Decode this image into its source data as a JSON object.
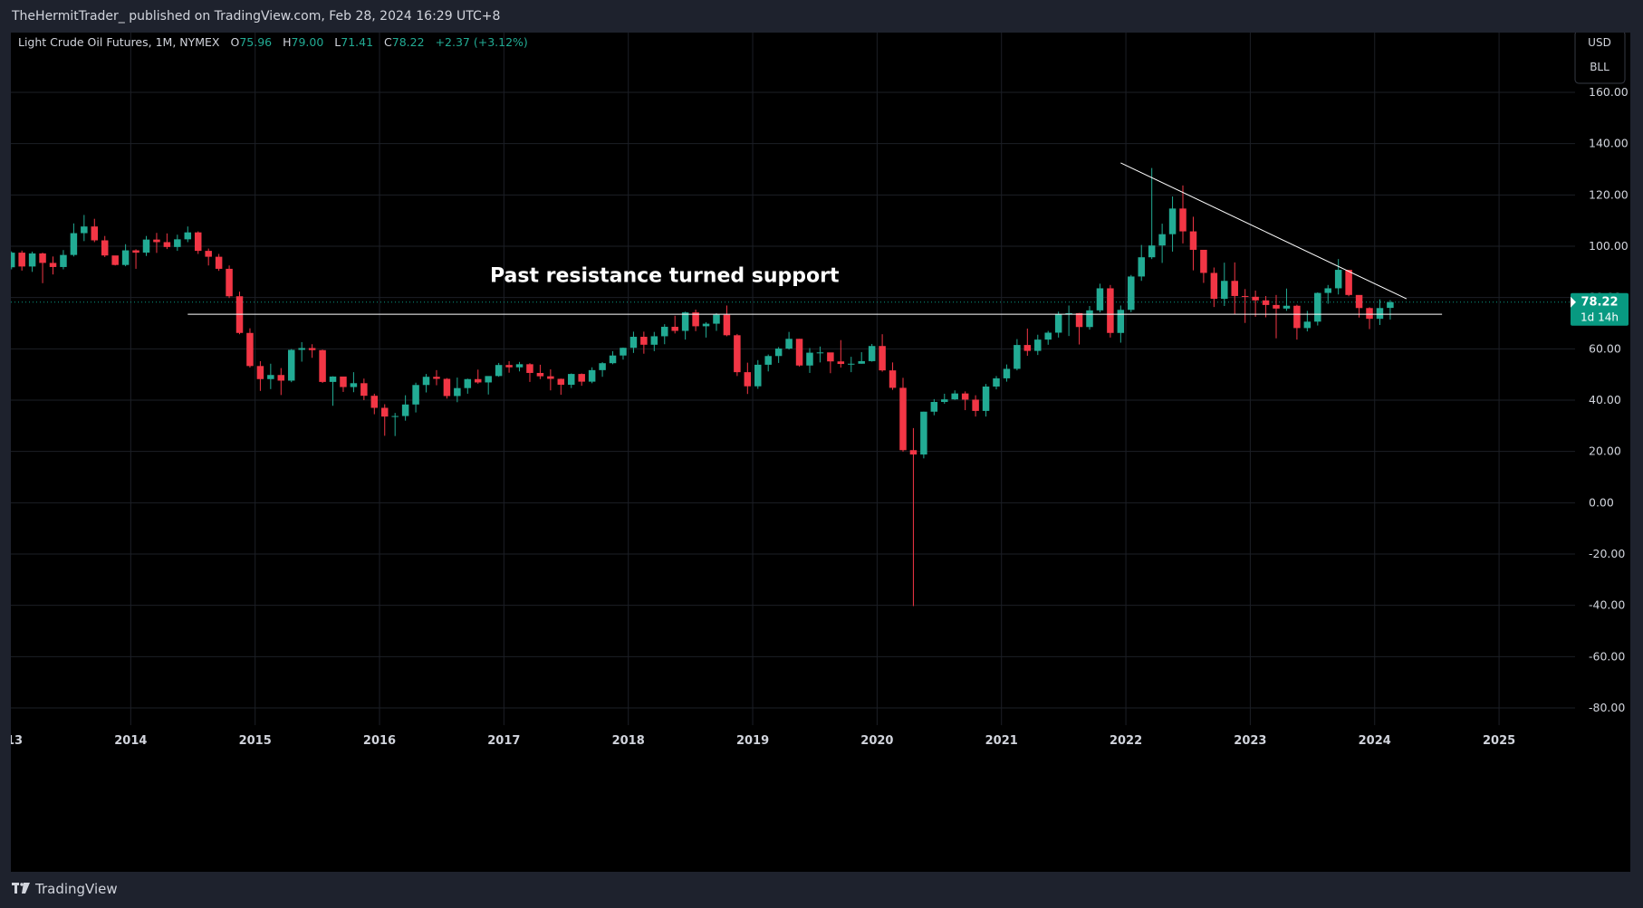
{
  "header": {
    "published_line": "TheHermitTrader_ published on TradingView.com, Feb 28, 2024 16:29 UTC+8"
  },
  "footer": {
    "brand": "TradingView",
    "logo_icon": "tradingview-logo-icon"
  },
  "legend": {
    "symbol": "Light Crude Oil Futures, 1M, NYMEX",
    "o_label": "O",
    "o": "75.96",
    "h_label": "H",
    "h": "79.00",
    "l_label": "L",
    "l": "71.41",
    "c_label": "C",
    "c": "78.22",
    "change": "+2.37 (+3.12%)"
  },
  "currency": {
    "unit1": "USD",
    "unit2": "BLL"
  },
  "price_tag": {
    "price": "78.22",
    "countdown": "1d 14h"
  },
  "colors": {
    "up": "#089981",
    "down": "#f23645",
    "up_bright": "#22ab94",
    "grid": "#1c1f26",
    "text": "#d1d4dc"
  },
  "chart_data": {
    "type": "candlestick",
    "interval": "1M",
    "y_axis": {
      "min": -80,
      "max": 160,
      "ticks": [
        "160.00",
        "140.00",
        "120.00",
        "100.00",
        "80.00",
        "60.00",
        "40.00",
        "20.00",
        "0.00",
        "-20.00",
        "-40.00",
        "-60.00",
        "-80.00"
      ]
    },
    "x_axis": {
      "ticks": [
        "2013",
        "2014",
        "2015",
        "2016",
        "2017",
        "2018",
        "2019",
        "2020",
        "2021",
        "2022",
        "2023",
        "2024",
        "2025"
      ]
    },
    "ohlc": [
      [
        "2012-12",
        88.9,
        92.0,
        84.0,
        91.8
      ],
      [
        "2013-01",
        91.8,
        98.0,
        91.0,
        97.5
      ],
      [
        "2013-02",
        97.5,
        98.3,
        90.5,
        92.1
      ],
      [
        "2013-03",
        92.1,
        97.9,
        90.0,
        97.2
      ],
      [
        "2013-04",
        97.2,
        97.5,
        85.6,
        93.5
      ],
      [
        "2013-05",
        93.5,
        96.0,
        89.0,
        91.9
      ],
      [
        "2013-06",
        91.9,
        98.5,
        91.0,
        96.6
      ],
      [
        "2013-07",
        96.6,
        108.9,
        96.0,
        105.1
      ],
      [
        "2013-08",
        105.1,
        112.2,
        102.0,
        107.7
      ],
      [
        "2013-09",
        107.7,
        110.7,
        101.6,
        102.3
      ],
      [
        "2013-10",
        102.3,
        104.0,
        95.8,
        96.4
      ],
      [
        "2013-11",
        96.4,
        95.5,
        92.5,
        92.7
      ],
      [
        "2013-12",
        92.7,
        100.8,
        92.2,
        98.4
      ],
      [
        "2014-01",
        98.4,
        98.8,
        91.2,
        97.5
      ],
      [
        "2014-02",
        97.5,
        104.0,
        96.2,
        102.6
      ],
      [
        "2014-03",
        102.6,
        105.2,
        97.4,
        101.6
      ],
      [
        "2014-04",
        101.6,
        105.0,
        98.9,
        99.7
      ],
      [
        "2014-05",
        99.7,
        104.5,
        98.2,
        102.7
      ],
      [
        "2014-06",
        102.7,
        107.7,
        101.6,
        105.4
      ],
      [
        "2014-07",
        105.4,
        105.8,
        97.0,
        98.2
      ],
      [
        "2014-08",
        98.2,
        99.1,
        92.5,
        95.9
      ],
      [
        "2014-09",
        95.9,
        97.0,
        90.4,
        91.2
      ],
      [
        "2014-10",
        91.2,
        92.5,
        79.8,
        80.5
      ],
      [
        "2014-11",
        80.5,
        82.3,
        65.7,
        66.2
      ],
      [
        "2014-12",
        66.2,
        68.0,
        52.7,
        53.3
      ],
      [
        "2015-01",
        53.3,
        55.2,
        43.6,
        48.2
      ],
      [
        "2015-02",
        48.2,
        54.2,
        44.3,
        49.8
      ],
      [
        "2015-03",
        49.8,
        52.5,
        42.0,
        47.6
      ],
      [
        "2015-04",
        47.6,
        59.9,
        47.0,
        59.6
      ],
      [
        "2015-05",
        59.6,
        62.6,
        55.0,
        60.3
      ],
      [
        "2015-06",
        60.3,
        61.8,
        56.5,
        59.5
      ],
      [
        "2015-07",
        59.5,
        59.7,
        46.7,
        47.1
      ],
      [
        "2015-08",
        47.1,
        49.3,
        37.8,
        49.2
      ],
      [
        "2015-09",
        49.2,
        49.0,
        43.2,
        45.1
      ],
      [
        "2015-10",
        45.1,
        50.9,
        43.1,
        46.6
      ],
      [
        "2015-11",
        46.6,
        48.4,
        40.0,
        41.7
      ],
      [
        "2015-12",
        41.7,
        42.5,
        34.5,
        37.0
      ],
      [
        "2016-01",
        37.0,
        38.4,
        26.1,
        33.6
      ],
      [
        "2016-02",
        33.6,
        35.0,
        26.0,
        33.8
      ],
      [
        "2016-03",
        33.8,
        41.9,
        32.0,
        38.3
      ],
      [
        "2016-04",
        38.3,
        46.8,
        35.2,
        45.9
      ],
      [
        "2016-05",
        45.9,
        50.2,
        43.0,
        49.1
      ],
      [
        "2016-06",
        49.1,
        51.7,
        45.8,
        48.3
      ],
      [
        "2016-07",
        48.3,
        48.6,
        40.6,
        41.6
      ],
      [
        "2016-08",
        41.6,
        48.8,
        39.2,
        44.7
      ],
      [
        "2016-09",
        44.7,
        48.4,
        42.5,
        48.2
      ],
      [
        "2016-10",
        48.2,
        51.9,
        46.4,
        46.9
      ],
      [
        "2016-11",
        46.9,
        49.2,
        42.2,
        49.4
      ],
      [
        "2016-12",
        49.4,
        54.5,
        49.1,
        53.7
      ],
      [
        "2017-01",
        53.7,
        55.2,
        50.7,
        52.8
      ],
      [
        "2017-02",
        52.8,
        54.9,
        51.2,
        54.0
      ],
      [
        "2017-03",
        54.0,
        54.4,
        47.1,
        50.6
      ],
      [
        "2017-04",
        50.6,
        53.8,
        48.2,
        49.3
      ],
      [
        "2017-05",
        49.3,
        52.0,
        43.8,
        48.3
      ],
      [
        "2017-06",
        48.3,
        48.4,
        42.1,
        46.0
      ],
      [
        "2017-07",
        46.0,
        50.4,
        44.7,
        50.2
      ],
      [
        "2017-08",
        50.2,
        50.4,
        45.6,
        47.2
      ],
      [
        "2017-09",
        47.2,
        52.8,
        46.6,
        51.7
      ],
      [
        "2017-10",
        51.7,
        54.8,
        49.1,
        54.4
      ],
      [
        "2017-11",
        54.4,
        59.1,
        54.0,
        57.4
      ],
      [
        "2017-12",
        57.4,
        60.5,
        55.8,
        60.4
      ],
      [
        "2018-01",
        60.4,
        66.7,
        58.4,
        64.7
      ],
      [
        "2018-02",
        64.7,
        66.7,
        58.1,
        61.6
      ],
      [
        "2018-03",
        61.6,
        66.6,
        59.1,
        64.9
      ],
      [
        "2018-04",
        64.9,
        69.6,
        61.8,
        68.6
      ],
      [
        "2018-05",
        68.6,
        72.9,
        66.0,
        67.0
      ],
      [
        "2018-06",
        67.0,
        74.5,
        63.6,
        74.2
      ],
      [
        "2018-07",
        74.2,
        75.3,
        66.9,
        68.8
      ],
      [
        "2018-08",
        68.8,
        70.4,
        64.4,
        69.8
      ],
      [
        "2018-09",
        69.8,
        73.9,
        67.0,
        73.3
      ],
      [
        "2018-10",
        73.3,
        76.9,
        64.9,
        65.3
      ],
      [
        "2018-11",
        65.3,
        65.8,
        49.4,
        50.9
      ],
      [
        "2018-12",
        50.9,
        54.6,
        42.4,
        45.4
      ],
      [
        "2019-01",
        45.4,
        55.6,
        44.4,
        53.8
      ],
      [
        "2019-02",
        53.8,
        57.8,
        51.2,
        57.2
      ],
      [
        "2019-03",
        57.2,
        60.7,
        54.5,
        60.1
      ],
      [
        "2019-04",
        60.1,
        66.6,
        59.7,
        63.9
      ],
      [
        "2019-05",
        63.9,
        63.9,
        53.1,
        53.5
      ],
      [
        "2019-06",
        53.5,
        60.3,
        50.6,
        58.5
      ],
      [
        "2019-07",
        58.5,
        60.9,
        54.7,
        58.6
      ],
      [
        "2019-08",
        58.6,
        57.5,
        50.5,
        55.1
      ],
      [
        "2019-09",
        55.1,
        63.4,
        52.7,
        54.1
      ],
      [
        "2019-10",
        54.1,
        56.9,
        50.9,
        54.2
      ],
      [
        "2019-11",
        54.2,
        58.7,
        54.2,
        55.2
      ],
      [
        "2019-12",
        55.2,
        61.9,
        55.0,
        61.1
      ],
      [
        "2020-01",
        61.1,
        65.7,
        51.1,
        51.6
      ],
      [
        "2020-02",
        51.6,
        54.7,
        44.0,
        44.8
      ],
      [
        "2020-03",
        44.8,
        48.7,
        19.9,
        20.5
      ],
      [
        "2020-04",
        20.5,
        29.1,
        -40.3,
        18.8
      ],
      [
        "2020-05",
        18.8,
        35.5,
        17.3,
        35.5
      ],
      [
        "2020-06",
        35.5,
        40.4,
        34.1,
        39.3
      ],
      [
        "2020-07",
        39.3,
        42.5,
        38.6,
        40.3
      ],
      [
        "2020-08",
        40.3,
        43.8,
        40.1,
        42.6
      ],
      [
        "2020-09",
        42.6,
        43.4,
        36.1,
        40.2
      ],
      [
        "2020-10",
        40.2,
        41.9,
        33.6,
        35.8
      ],
      [
        "2020-11",
        35.8,
        46.3,
        33.6,
        45.3
      ],
      [
        "2020-12",
        45.3,
        49.4,
        44.2,
        48.5
      ],
      [
        "2021-01",
        48.5,
        53.9,
        47.2,
        52.2
      ],
      [
        "2021-02",
        52.2,
        63.8,
        51.6,
        61.5
      ],
      [
        "2021-03",
        61.5,
        67.9,
        57.3,
        59.2
      ],
      [
        "2021-04",
        59.2,
        65.5,
        57.6,
        63.6
      ],
      [
        "2021-05",
        63.6,
        67.0,
        61.6,
        66.3
      ],
      [
        "2021-06",
        66.3,
        74.5,
        64.4,
        73.5
      ],
      [
        "2021-07",
        73.5,
        76.9,
        65.0,
        73.9
      ],
      [
        "2021-08",
        73.9,
        74.0,
        61.7,
        68.5
      ],
      [
        "2021-09",
        68.5,
        76.7,
        67.5,
        75.0
      ],
      [
        "2021-10",
        75.0,
        85.4,
        74.2,
        83.6
      ],
      [
        "2021-11",
        83.6,
        84.9,
        64.4,
        66.2
      ],
      [
        "2021-12",
        66.2,
        76.9,
        62.4,
        75.2
      ],
      [
        "2022-01",
        75.2,
        88.8,
        74.3,
        88.2
      ],
      [
        "2022-02",
        88.2,
        100.5,
        86.5,
        95.7
      ],
      [
        "2022-03",
        95.7,
        130.5,
        95.0,
        100.3
      ],
      [
        "2022-04",
        100.3,
        108.8,
        93.5,
        104.7
      ],
      [
        "2022-05",
        104.7,
        119.4,
        97.9,
        114.7
      ],
      [
        "2022-06",
        114.7,
        123.7,
        101.1,
        105.8
      ],
      [
        "2022-07",
        105.8,
        111.5,
        90.6,
        98.6
      ],
      [
        "2022-08",
        98.6,
        97.7,
        85.7,
        89.6
      ],
      [
        "2022-09",
        89.6,
        91.7,
        76.3,
        79.5
      ],
      [
        "2022-10",
        79.5,
        93.6,
        76.7,
        86.5
      ],
      [
        "2022-11",
        86.5,
        93.7,
        73.6,
        80.6
      ],
      [
        "2022-12",
        80.6,
        83.3,
        70.1,
        80.3
      ],
      [
        "2023-01",
        80.3,
        82.7,
        72.5,
        78.9
      ],
      [
        "2023-02",
        78.9,
        80.6,
        72.3,
        77.1
      ],
      [
        "2023-03",
        77.1,
        81.0,
        64.1,
        75.7
      ],
      [
        "2023-04",
        75.7,
        83.5,
        74.8,
        76.8
      ],
      [
        "2023-05",
        76.8,
        77.2,
        63.6,
        68.1
      ],
      [
        "2023-06",
        68.1,
        74.8,
        66.8,
        70.6
      ],
      [
        "2023-07",
        70.6,
        82.0,
        69.1,
        81.8
      ],
      [
        "2023-08",
        81.8,
        84.9,
        77.6,
        83.6
      ],
      [
        "2023-09",
        83.6,
        95.0,
        81.2,
        90.8
      ],
      [
        "2023-10",
        90.8,
        90.8,
        80.5,
        81.0
      ],
      [
        "2023-11",
        81.0,
        80.1,
        72.2,
        75.9
      ],
      [
        "2023-12",
        75.9,
        76.2,
        67.7,
        71.7
      ],
      [
        "2024-01",
        71.7,
        79.3,
        69.3,
        75.9
      ],
      [
        "2024-02",
        75.96,
        79.0,
        71.41,
        78.22
      ]
    ],
    "annotations": [
      {
        "type": "horizontal_line",
        "price": 73.5,
        "from": "2014-06",
        "to": "2024-07",
        "color": "#ffffff"
      },
      {
        "type": "trend_line",
        "from": [
          "2021-12",
          132.5
        ],
        "to": [
          "2024-02",
          79.5
        ],
        "color": "#ffffff"
      },
      {
        "type": "text",
        "at": [
          "2018-04",
          86
        ],
        "text": "Past resistance turned support"
      }
    ]
  }
}
